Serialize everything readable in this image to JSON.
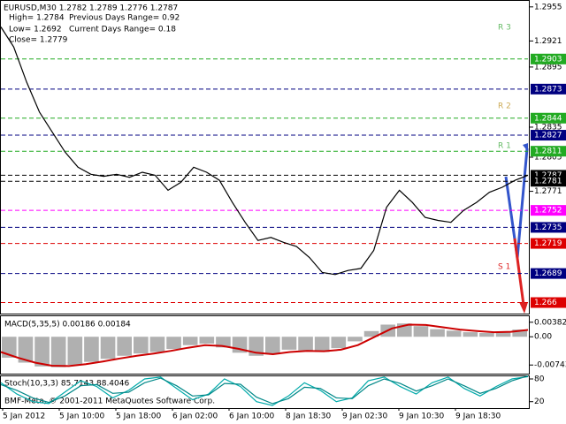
{
  "chart_data": [
    {
      "type": "line",
      "title": "EURUSD,M30 1.2782 1.2789 1.2776 1.2787",
      "annotations": [
        "High= 1.2784",
        "Previous Days Range= 0.92",
        "Low= 1.2692",
        "Current Days Range= 0.18",
        "Close= 1.2779"
      ],
      "pivot_labels": [
        "R 3",
        "R 2",
        "R 1",
        "S 1"
      ],
      "ylim": [
        1.2649,
        1.2961
      ],
      "yticks": [
        1.2955,
        1.2921,
        1.2895,
        1.2835,
        1.2805,
        1.2771
      ],
      "color": "#000000",
      "values": [
        1.2935,
        1.2915,
        1.288,
        1.285,
        1.283,
        1.281,
        1.2795,
        1.2788,
        1.2786,
        1.2788,
        1.2785,
        1.279,
        1.2787,
        1.2772,
        1.278,
        1.2795,
        1.279,
        1.2782,
        1.276,
        1.274,
        1.2722,
        1.2725,
        1.272,
        1.2716,
        1.2705,
        1.269,
        1.2688,
        1.2692,
        1.2694,
        1.2712,
        1.2755,
        1.2772,
        1.276,
        1.2745,
        1.2742,
        1.274,
        1.2752,
        1.276,
        1.277,
        1.2775,
        1.2782,
        1.2787
      ],
      "levels": [
        {
          "value": 1.2903,
          "color": "#22aa22"
        },
        {
          "value": 1.2873,
          "color": "#000080"
        },
        {
          "value": 1.2844,
          "color": "#22aa22"
        },
        {
          "value": 1.2827,
          "color": "#000080"
        },
        {
          "value": 1.2811,
          "color": "#22aa22"
        },
        {
          "value": 1.2787,
          "color": "#000000"
        },
        {
          "value": 1.2781,
          "color": "#000000"
        },
        {
          "value": 1.2752,
          "color": "#ff00ff"
        },
        {
          "value": 1.2735,
          "color": "#000080"
        },
        {
          "value": 1.2719,
          "color": "#dd0000"
        },
        {
          "value": 1.2689,
          "color": "#000080"
        },
        {
          "value": 1.266,
          "color": "#dd0000"
        }
      ],
      "xtick_labels": [
        "5 Jan 2012",
        "5 Jan 10:00",
        "5 Jan 18:00",
        "6 Jan 02:00",
        "6 Jan 10:00",
        "8 Jan 18:30",
        "9 Jan 02:30",
        "9 Jan 10:30",
        "9 Jan 18:30"
      ]
    },
    {
      "type": "bar",
      "title": "MACD(5,35,5) 0.00186 0.00184",
      "ylim": [
        -0.0097,
        0.0054
      ],
      "yticks": [
        0.00382,
        {
          "value": 0,
          "label": "0.00"
        },
        -0.00743
      ],
      "series": [
        {
          "color": "#b0b0b0",
          "values": [
            -0.0055,
            -0.0068,
            -0.0078,
            -0.008,
            -0.0074,
            -0.0066,
            -0.0058,
            -0.005,
            -0.0044,
            -0.004,
            -0.0032,
            -0.0022,
            -0.0018,
            -0.0028,
            -0.0042,
            -0.005,
            -0.0046,
            -0.0034,
            -0.0036,
            -0.004,
            -0.003,
            -0.0012,
            0.0015,
            0.0032,
            0.0035,
            0.0028,
            0.002,
            0.0016,
            0.0012,
            0.001,
            0.0014,
            0.0019
          ]
        },
        {
          "type": "line",
          "color": "#cc0000",
          "values": [
            -0.004,
            -0.0055,
            -0.0068,
            -0.0076,
            -0.0077,
            -0.0072,
            -0.0065,
            -0.0057,
            -0.005,
            -0.0044,
            -0.0037,
            -0.0029,
            -0.0022,
            -0.0024,
            -0.0032,
            -0.0042,
            -0.0046,
            -0.004,
            -0.0037,
            -0.0038,
            -0.0034,
            -0.0022,
            0.0,
            0.0022,
            0.0032,
            0.0031,
            0.0025,
            0.0019,
            0.0015,
            0.0012,
            0.0013,
            0.0018
          ]
        }
      ]
    },
    {
      "type": "line",
      "title": "Stoch(10,3,3) 85.7143 88.4046",
      "footer": "BMF-Meta, © 2001-2011 MetaQuotes Software Corp.",
      "ylim": [
        3,
        87
      ],
      "yticks": [
        80,
        20
      ],
      "series": [
        {
          "color": "#00aaaa",
          "values": [
            70,
            40,
            20,
            15,
            45,
            75,
            60,
            30,
            50,
            80,
            85,
            55,
            25,
            40,
            80,
            60,
            20,
            10,
            35,
            70,
            50,
            20,
            30,
            75,
            85,
            60,
            40,
            70,
            85,
            55,
            35,
            60,
            80,
            86
          ]
        },
        {
          "color": "#008888",
          "values": [
            65,
            50,
            30,
            18,
            35,
            62,
            65,
            42,
            45,
            70,
            82,
            62,
            35,
            38,
            68,
            66,
            32,
            15,
            28,
            58,
            55,
            30,
            28,
            62,
            80,
            68,
            48,
            62,
            80,
            62,
            42,
            55,
            75,
            88
          ]
        }
      ]
    }
  ]
}
